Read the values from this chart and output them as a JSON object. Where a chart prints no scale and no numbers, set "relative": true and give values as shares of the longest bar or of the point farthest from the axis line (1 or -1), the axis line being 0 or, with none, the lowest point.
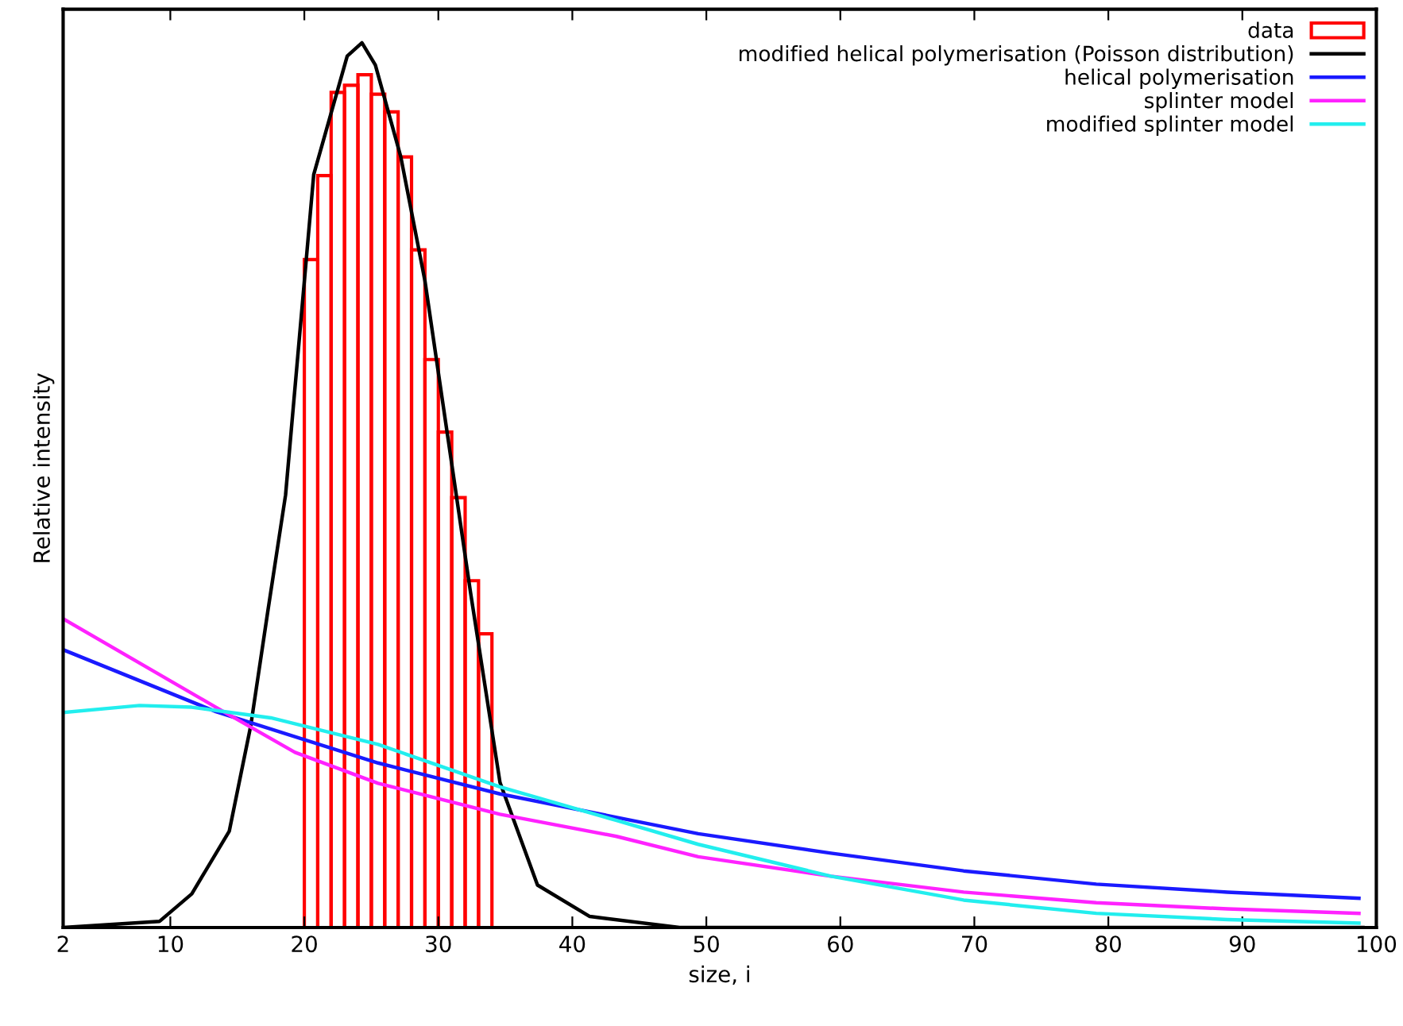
{
  "chart_data": {
    "type": "line",
    "xlabel": "size, i",
    "ylabel": "Relative intensity",
    "relative": true,
    "xlim": [
      2,
      100
    ],
    "xticks": [
      2,
      10,
      20,
      30,
      40,
      50,
      60,
      70,
      80,
      90,
      100
    ],
    "tick_labels": "x",
    "legend": "top right",
    "grid": false,
    "series": [
      {
        "type": "histogram",
        "name": "data",
        "color": "#ff0000",
        "bins": [
          20,
          21,
          22,
          23,
          24,
          25,
          26,
          27,
          28,
          29,
          30,
          31,
          32,
          33,
          34
        ],
        "values": [
          0.755,
          0.85,
          0.944,
          0.952,
          0.964,
          0.942,
          0.922,
          0.871,
          0.766,
          0.642,
          0.56,
          0.486,
          0.392,
          0.332
        ]
      },
      {
        "name": "modified helical polymerisation (Poisson distribution)",
        "color": "#000000",
        "x": [
          2,
          9.2,
          11.6,
          14.4,
          16,
          17.3,
          18.6,
          20.7,
          23.2,
          24.3,
          25.3,
          27.2,
          29,
          30.7,
          32.4,
          34.6,
          37.4,
          41.3,
          48,
          99
        ],
        "values": [
          0,
          0.007,
          0.038,
          0.109,
          0.228,
          0.36,
          0.489,
          0.851,
          0.985,
          1,
          0.975,
          0.871,
          0.731,
          0.555,
          0.379,
          0.164,
          0.048,
          0.0125,
          0,
          0
        ]
      },
      {
        "name": "helical polymerisation",
        "color": "#1a1aff",
        "x": [
          2,
          13.4,
          25.5,
          34.6,
          49.4,
          59.3,
          69.2,
          79.1,
          88.9,
          98.7
        ],
        "values": [
          0.314,
          0.244,
          0.186,
          0.151,
          0.106,
          0.084,
          0.064,
          0.049,
          0.04,
          0.033
        ]
      },
      {
        "name": "splinter model",
        "color": "#ff22ff",
        "x": [
          2,
          13.4,
          19.3,
          25.5,
          34.6,
          43.3,
          49.4,
          59.3,
          69.2,
          79.1,
          88.9,
          98.7
        ],
        "values": [
          0.349,
          0.249,
          0.198,
          0.163,
          0.128,
          0.103,
          0.08,
          0.058,
          0.04,
          0.028,
          0.021,
          0.016
        ]
      },
      {
        "name": "modified splinter model",
        "color": "#22eeee",
        "x": [
          2,
          7.7,
          11.6,
          17.5,
          25.5,
          34.6,
          43.3,
          49.4,
          59.3,
          69.2,
          79.1,
          88.9,
          98.7
        ],
        "values": [
          0.243,
          0.251,
          0.249,
          0.237,
          0.207,
          0.159,
          0.121,
          0.094,
          0.058,
          0.031,
          0.016,
          0.009,
          0.005
        ]
      }
    ]
  }
}
